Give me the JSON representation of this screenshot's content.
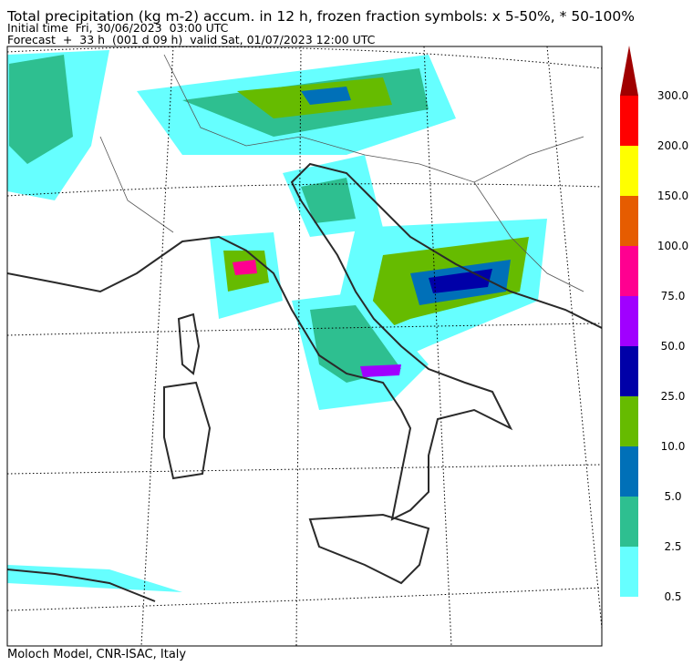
{
  "header": {
    "title": "Total precipitation (kg m-2) accum. in 12 h, frozen fraction symbols: x 5-50%, * 50-100%",
    "initial_time": "Initial time  Fri, 30/06/2023  03:00 UTC",
    "forecast": "Forecast  +  33 h  (001 d 09 h)  valid Sat, 01/07/2023 12:00 UTC"
  },
  "colorbar": {
    "levels": [
      {
        "value": 0.5,
        "label": "0.5"
      },
      {
        "value": 2.5,
        "label": "2.5"
      },
      {
        "value": 5,
        "label": "5.0"
      },
      {
        "value": 10,
        "label": "10.0"
      },
      {
        "value": 25,
        "label": "25.0"
      },
      {
        "value": 50,
        "label": "50.0"
      },
      {
        "value": 75,
        "label": "75.0"
      },
      {
        "value": 100,
        "label": "100.0"
      },
      {
        "value": 150,
        "label": "150.0"
      },
      {
        "value": 200,
        "label": "200.0"
      },
      {
        "value": 300,
        "label": "300.0"
      }
    ],
    "colors": [
      "#66ffff",
      "#2ebf90",
      "#0070b8",
      "#66bb00",
      "#0000a8",
      "#a000ff",
      "#ff0090",
      "#e65c00",
      "#ffff00",
      "#ff0000",
      "#a00000"
    ]
  },
  "footer": "Moloch Model, CNR-ISAC, Italy"
}
